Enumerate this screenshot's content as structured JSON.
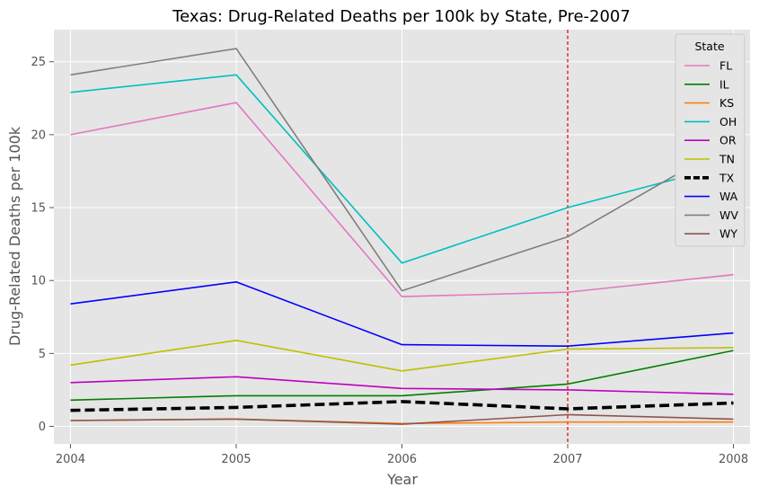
{
  "chart_data": {
    "type": "line",
    "title": "Texas: Drug-Related Deaths per 100k by State, Pre-2007",
    "xlabel": "Year",
    "ylabel": "Drug-Related Deaths per 100k",
    "x": [
      2004,
      2005,
      2006,
      2007,
      2008
    ],
    "x_tick_labels": [
      "2004",
      "2005",
      "2006",
      "2007",
      "2008"
    ],
    "ylim": [
      -1.2,
      27.2
    ],
    "y_ticks": [
      0,
      5,
      10,
      15,
      20,
      25
    ],
    "y_tick_labels": [
      "0",
      "5",
      "10",
      "15",
      "20",
      "25"
    ],
    "grid": true,
    "legend": {
      "title": "State",
      "position": "top-right"
    },
    "reference_line": {
      "x": 2007,
      "color": "#e00000",
      "style": "dashed"
    },
    "series": [
      {
        "name": "FL",
        "color": "#e377c2",
        "values": [
          20.0,
          22.2,
          8.9,
          9.2,
          10.4
        ]
      },
      {
        "name": "IL",
        "color": "#007f00",
        "values": [
          1.8,
          2.1,
          2.1,
          2.9,
          5.2
        ]
      },
      {
        "name": "KS",
        "color": "#ff7f0e",
        "values": [
          0.4,
          0.5,
          0.2,
          0.3,
          0.3
        ]
      },
      {
        "name": "OH",
        "color": "#00bfbf",
        "values": [
          22.9,
          24.1,
          11.2,
          15.0,
          18.0
        ]
      },
      {
        "name": "OR",
        "color": "#bf00bf",
        "values": [
          3.0,
          3.4,
          2.6,
          2.5,
          2.2
        ]
      },
      {
        "name": "TN",
        "color": "#bfbf00",
        "values": [
          4.2,
          5.9,
          3.8,
          5.3,
          5.4
        ]
      },
      {
        "name": "TX",
        "color": "#000000",
        "dashed": true,
        "values": [
          1.1,
          1.3,
          1.7,
          1.2,
          1.6
        ]
      },
      {
        "name": "WA",
        "color": "#0000ff",
        "values": [
          8.4,
          9.9,
          5.6,
          5.5,
          6.4
        ]
      },
      {
        "name": "WV",
        "color": "#7f7f7f",
        "values": [
          24.1,
          25.9,
          9.3,
          13.0,
          19.5
        ]
      },
      {
        "name": "WY",
        "color": "#8c564b",
        "values": [
          0.4,
          0.5,
          0.15,
          0.8,
          0.5
        ]
      }
    ]
  }
}
